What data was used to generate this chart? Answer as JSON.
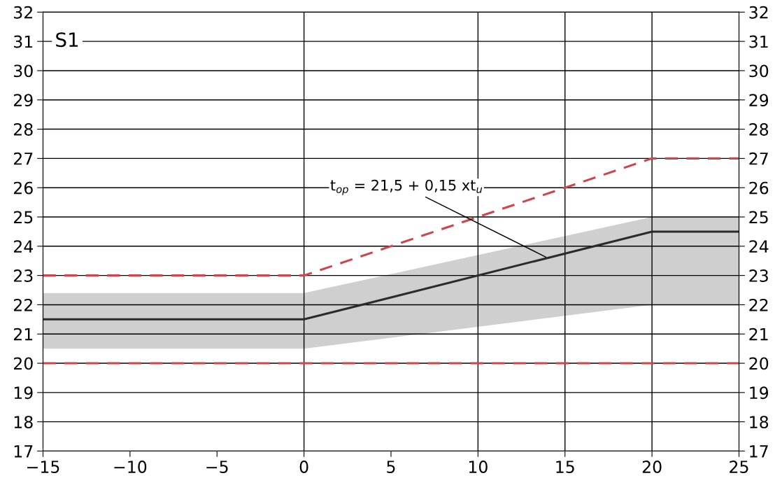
{
  "chart_data": {
    "type": "line",
    "title": "S1",
    "xlim": [
      -15,
      25
    ],
    "xticks": [
      {
        "value": -15,
        "label": "−15"
      },
      {
        "value": -10,
        "label": "−10"
      },
      {
        "value": -5,
        "label": "−5"
      },
      0,
      5,
      10,
      15,
      20,
      25
    ],
    "ylim": [
      17,
      32
    ],
    "yticks": [
      17,
      18,
      19,
      20,
      21,
      22,
      23,
      24,
      25,
      26,
      27,
      28,
      29,
      30,
      31,
      32
    ],
    "y2lim": [
      17,
      32
    ],
    "y2ticks": [
      17,
      18,
      19,
      20,
      21,
      22,
      23,
      24,
      25,
      26,
      27,
      28,
      29,
      30,
      31,
      32
    ],
    "grid": "y",
    "marker": "none",
    "series": [
      {
        "color": "#2b2b2b",
        "line_style": "solid",
        "x": [
          -15,
          0,
          20,
          25
        ],
        "values": [
          21.5,
          21.5,
          24.5,
          24.5
        ],
        "lower": [
          20.5,
          20.5,
          22,
          22
        ],
        "upper": [
          22.4,
          22.4,
          25,
          25
        ]
      },
      {
        "color": "#d0454c",
        "line_style": "dashed",
        "x": [
          -15,
          0,
          20,
          25
        ],
        "values": [
          23,
          23,
          27,
          27
        ]
      },
      {
        "color": "#d0454c",
        "line_style": "dashed",
        "x": [
          -15,
          25
        ],
        "values": [
          20,
          20
        ]
      }
    ],
    "ref_lines": [
      {
        "axis": "x",
        "value": 0,
        "color": "#000000"
      },
      {
        "axis": "x",
        "value": 10,
        "color": "#000000"
      },
      {
        "axis": "x",
        "value": 15,
        "color": "#000000"
      },
      {
        "axis": "x",
        "value": 20,
        "color": "#000000"
      }
    ],
    "annotations": [
      {
        "text": "t$_{op}$ = 21,5 + 0,15 xt$_{u}$",
        "x": 14,
        "y": 23.6
      }
    ]
  }
}
